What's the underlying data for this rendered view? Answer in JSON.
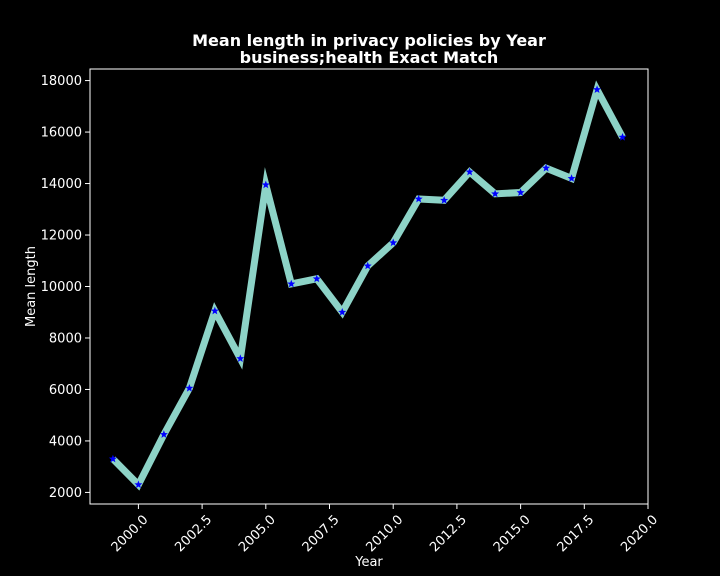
{
  "chart_data": {
    "type": "line",
    "title": "Mean length in privacy policies by Year",
    "subtitle": "business;health Exact Match",
    "xlabel": "Year",
    "ylabel": "Mean length",
    "xlim": [
      1998.1,
      2020.0
    ],
    "ylim": [
      1550,
      18450
    ],
    "xticks": [
      2000.0,
      2002.5,
      2005.0,
      2007.5,
      2010.0,
      2012.5,
      2015.0,
      2017.5,
      2020.0
    ],
    "xtick_labels": [
      "2000.0",
      "2002.5",
      "2005.0",
      "2007.5",
      "2010.0",
      "2012.5",
      "2015.0",
      "2017.5",
      "2020.0"
    ],
    "yticks": [
      2000,
      4000,
      6000,
      8000,
      10000,
      12000,
      14000,
      16000,
      18000
    ],
    "ytick_labels": [
      "2000",
      "4000",
      "6000",
      "8000",
      "10000",
      "12000",
      "14000",
      "16000",
      "18000"
    ],
    "grid": false,
    "series": [
      {
        "x": [
          1999,
          2000,
          2001,
          2002,
          2003,
          2004,
          2005,
          2006,
          2007,
          2008,
          2009,
          2010,
          2011,
          2012,
          2013,
          2014,
          2015,
          2016,
          2017,
          2018,
          2019
        ],
        "values": [
          3300,
          2300,
          4250,
          6050,
          9050,
          7200,
          13950,
          10100,
          10300,
          9000,
          10800,
          11700,
          13400,
          13350,
          14450,
          13600,
          13650,
          14600,
          14200,
          17650,
          15800
        ],
        "line_color": "#8dd3c7",
        "marker": "star",
        "marker_color": "#0000ff"
      }
    ],
    "colors": {
      "background": "#000000",
      "axes": "#ffffff",
      "text": "#ffffff"
    }
  }
}
